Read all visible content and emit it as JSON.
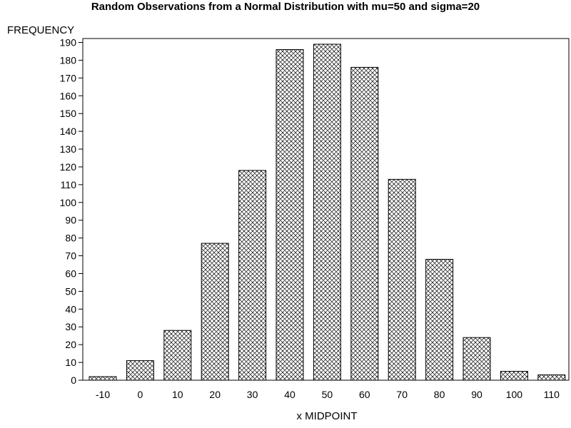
{
  "chart_data": {
    "type": "bar",
    "title": "Random Observations from a Normal Distribution with mu=50 and sigma=20",
    "xlabel": "x MIDPOINT",
    "ylabel": "FREQUENCY",
    "categories": [
      "-10",
      "0",
      "10",
      "20",
      "30",
      "40",
      "50",
      "60",
      "70",
      "80",
      "90",
      "100",
      "110"
    ],
    "values": [
      2,
      11,
      28,
      77,
      118,
      186,
      189,
      176,
      113,
      68,
      24,
      5,
      3
    ],
    "ylim": [
      0,
      190
    ],
    "yticks": [
      0,
      10,
      20,
      30,
      40,
      50,
      60,
      70,
      80,
      90,
      100,
      110,
      120,
      130,
      140,
      150,
      160,
      170,
      180,
      190
    ],
    "bar_fill": "crosshatch",
    "bar_stroke": "#000000",
    "grid": false,
    "legend": "none"
  }
}
